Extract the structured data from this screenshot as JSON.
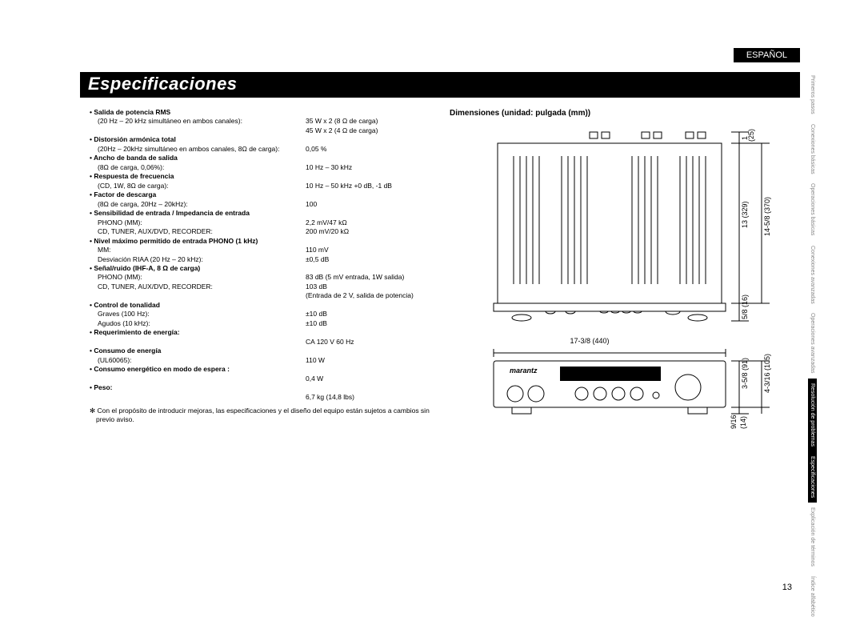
{
  "lang_tab": "ESPAÑOL",
  "title": "Especificaciones",
  "pageno": "13",
  "specs": [
    {
      "h": "• Salida de potencia RMS",
      "sub": "(20 Hz – 20 kHz simultáneo en ambos canales):",
      "v": "35 W x 2 (8 Ω de carga)\n45 W x 2 (4 Ω de carga)"
    },
    {
      "h": "• Distorsión armónica total",
      "sub": "(20Hz – 20kHz simultáneo en ambos canales, 8Ω de carga):",
      "v": "0,05 %"
    },
    {
      "h": "• Ancho de banda de salida",
      "sub": "(8Ω de carga, 0,06%):",
      "v": "10 Hz – 30 kHz"
    },
    {
      "h": "• Respuesta de frecuencia",
      "sub": "(CD, 1W, 8Ω de carga):",
      "v": "10 Hz – 50 kHz +0 dB, -1 dB"
    },
    {
      "h": "• Factor de descarga",
      "sub": "(8Ω de carga, 20Hz – 20kHz):",
      "v": "100"
    },
    {
      "h": "• Sensibilidad de entrada / Impedancia de entrada",
      "sub": "PHONO (MM):\nCD, TUNER, AUX/DVD, RECORDER:",
      "v": "2,2 mV/47 kΩ\n200 mV/20 kΩ"
    },
    {
      "h": "• Nivel máximo permitido de entrada PHONO (1 kHz)",
      "sub": "MM:\nDesviación RIAA (20 Hz – 20 kHz):",
      "v": "110 mV\n±0,5 dB"
    },
    {
      "h": "• Señal/ruido (IHF-A, 8 Ω de carga)",
      "sub": "PHONO (MM):\nCD, TUNER, AUX/DVD, RECORDER:",
      "v": "83 dB (5 mV entrada, 1W salida)\n103 dB\n(Entrada de 2 V, salida de potencia)"
    },
    {
      "h": "• Control de tonalidad",
      "sub": "Graves (100 Hz):\nAgudos (10 kHz):",
      "v": "±10 dB\n±10 dB"
    },
    {
      "h": "• Requerimiento de energía:",
      "sub": "",
      "v": "CA 120 V   60 Hz"
    },
    {
      "h": "• Consumo de energía",
      "sub": "(UL60065):",
      "v": "110 W"
    },
    {
      "h": "• Consumo energético en modo de espera :",
      "sub": "",
      "v": "0,4 W"
    },
    {
      "h": "• Peso:",
      "sub": "",
      "v": "6,7 kg (14,8 lbs)"
    }
  ],
  "note": "✻ Con el propósito de introducir mejoras, las especificaciones y el diseño del equipo están sujetos a cambios sin previo aviso.",
  "dim_title": "Dimensiones (unidad: pulgada (mm))",
  "dims": {
    "w_in": "17-3/8",
    "w_mm": "(440)",
    "top_top_in": "1",
    "top_top_mm": "(25)",
    "top_body_in": "13",
    "top_body_mm": "(329)",
    "top_total_in": "14-5/8",
    "top_total_mm": "(370)",
    "top_bottom_in": "5/8",
    "top_bottom_mm": "(16)",
    "front_h_in": "3-5/8",
    "front_h_mm": "(91)",
    "front_total_in": "4-3/16",
    "front_total_mm": "(105)",
    "front_foot_in": "9/16",
    "front_foot_mm": "(14)",
    "brand": "marantz"
  },
  "side_tabs": [
    {
      "t": "Primeros pasos",
      "a": false
    },
    {
      "t": "Conexiones básicas",
      "a": false
    },
    {
      "t": "Operaciones básicas",
      "a": false
    },
    {
      "t": "Conexiones avanzadas",
      "a": false
    },
    {
      "t": "Operaciones avanzadas",
      "a": false
    },
    {
      "t": "Resolución de\nproblemas",
      "a": true
    },
    {
      "t": "Especificaciones",
      "a": true
    },
    {
      "t": "Explicación de términos",
      "a": false
    },
    {
      "t": "Índice\nalfabético",
      "a": false
    }
  ]
}
